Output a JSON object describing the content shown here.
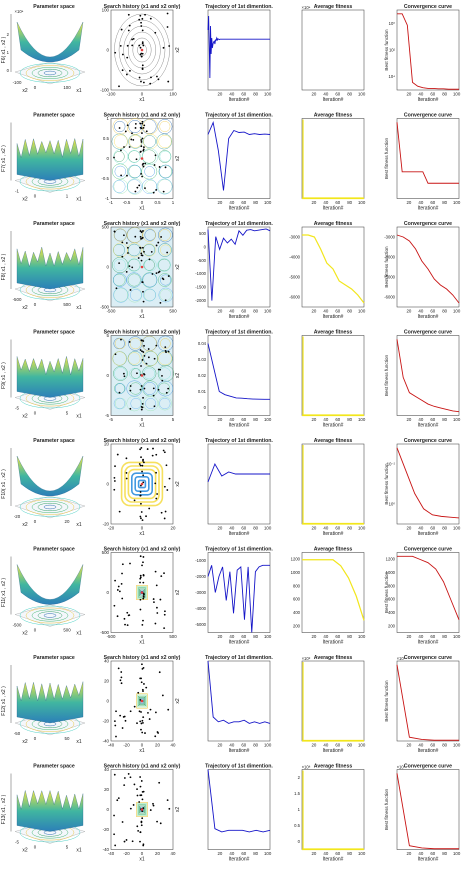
{
  "figure": {
    "col_titles": [
      "Parameter space",
      "Search history (x1 and x2 only)",
      "Trajectory of 1st dimention.",
      "Average fitness",
      "Convergence curve"
    ],
    "x1_label": "x1",
    "x2_label": "x2",
    "iter_label": "Iteration#",
    "bff_label": "Best fitness function"
  },
  "chart_data": [
    {
      "type": "line",
      "name": "F6",
      "surface_label": "F6( x1 , x2 )",
      "surface_x1": "x1",
      "surface_x2": "x2",
      "surface_ticks": [
        "-100",
        "0",
        "100"
      ],
      "surface_z": [
        "×10⁴",
        "0",
        "1",
        "2"
      ],
      "search_range": [
        -100,
        100
      ],
      "search_ticks": [
        "-100",
        "0",
        "100"
      ],
      "search_yticks": [
        "-100",
        "0",
        "100"
      ],
      "traj": {
        "ylim": [
          -100,
          100
        ],
        "yticks": [],
        "values": [
          50,
          85,
          10,
          -70,
          60,
          -10,
          30,
          5,
          15,
          20,
          22,
          15,
          25,
          24,
          30,
          25,
          28,
          27,
          26,
          27,
          27,
          27,
          27,
          27,
          27,
          27,
          27,
          27,
          27,
          27,
          27,
          27,
          27,
          27,
          27,
          27,
          27,
          27,
          27,
          27,
          27,
          27,
          27,
          27,
          27,
          27,
          27,
          27,
          27,
          27,
          27,
          27,
          27,
          27,
          27,
          27,
          27,
          27,
          27,
          27,
          27,
          27,
          27,
          27,
          27,
          27,
          27,
          27,
          27,
          27,
          27,
          27,
          27,
          27,
          27,
          27,
          27,
          27,
          27,
          27,
          27,
          27,
          27,
          27,
          27,
          27,
          27,
          27,
          27,
          27,
          27,
          27,
          27,
          27,
          27,
          27,
          27,
          27,
          27,
          27
        ]
      },
      "avg": {
        "scale": "×10⁴",
        "yticks": [],
        "values": [
          0,
          0,
          0,
          0,
          0
        ]
      },
      "conv": {
        "scale": "log",
        "yticks": [
          "10⁴",
          "10²",
          "10⁰"
        ],
        "values": [
          1,
          1,
          0.85,
          0.1,
          0.05,
          0.03,
          0.02,
          0.02,
          0.015,
          0.015,
          0.01,
          0.01,
          0.01
        ]
      }
    },
    {
      "type": "line",
      "name": "F7",
      "surface_label": "F7( x1 , x2 )",
      "surface_x1": "x1",
      "surface_x2": "x2",
      "surface_ticks": [
        "-1",
        "0",
        "1"
      ],
      "surface_z": [],
      "search_range": [
        -1,
        1
      ],
      "search_ticks": [
        "-1",
        "-0.5",
        "0",
        "0.5",
        "1"
      ],
      "search_yticks": [
        "-1",
        "-0.5",
        "0",
        "0.5",
        "1"
      ],
      "traj": {
        "ylim": [
          -1,
          1
        ],
        "yticks": [],
        "values": [
          0.6,
          0.9,
          0.2,
          -0.8,
          0.5,
          0.7,
          0.65,
          0.66,
          0.6,
          0.62,
          0.6,
          0.61,
          0.6
        ]
      },
      "avg": {
        "scale": "",
        "yticks": [],
        "values": [
          0,
          0,
          0
        ]
      },
      "conv": {
        "scale": "",
        "yticks": [],
        "values": [
          1,
          0.35,
          0.35,
          0.35,
          0.35,
          0.35,
          0.2,
          0.2,
          0.2,
          0.2,
          0.2,
          0.2,
          0.2
        ]
      }
    },
    {
      "type": "line",
      "name": "F8",
      "surface_label": "F8( x1 , x2 )",
      "surface_x1": "x1",
      "surface_x2": "x2",
      "surface_ticks": [
        "-500",
        "0",
        "500"
      ],
      "surface_z": [],
      "search_range": [
        -500,
        500
      ],
      "search_ticks": [
        "-500",
        "0",
        "500"
      ],
      "search_yticks": [
        "-500",
        "0",
        "500"
      ],
      "traj": {
        "ylim": [
          -2000,
          500
        ],
        "yticks": [
          "-2000",
          "-1500",
          "-1000",
          "-500",
          "0",
          "500"
        ],
        "values": [
          420,
          -1800,
          200,
          -200,
          150,
          0,
          120,
          -40,
          380,
          240,
          400,
          420,
          380,
          400,
          420,
          440,
          380
        ]
      },
      "avg": {
        "scale": "",
        "yticks": [
          "-6000",
          "-5000",
          "-4000",
          "-3000"
        ],
        "values": [
          -2600,
          -2600,
          -2700,
          -3300,
          -4000,
          -4300,
          -4900,
          -5100,
          -5300,
          -5600,
          -6000
        ]
      },
      "conv": {
        "scale": "",
        "yticks": [
          "-6000",
          "-5000",
          "-4000",
          "-3000"
        ],
        "values": [
          -2500,
          -2600,
          -2800,
          -3200,
          -3800,
          -4200,
          -4700,
          -5000,
          -5200,
          -5500,
          -5900
        ]
      }
    },
    {
      "type": "line",
      "name": "F9",
      "surface_label": "F9( x1 , x2 )",
      "surface_x1": "x1",
      "surface_x2": "x2",
      "surface_ticks": [
        "-5",
        "0",
        "5"
      ],
      "surface_z": [],
      "search_range": [
        -5,
        5
      ],
      "search_ticks": [
        "-5",
        "0",
        "5"
      ],
      "search_yticks": [
        "-5",
        "0",
        "5"
      ],
      "traj": {
        "ylim": [
          -0.01,
          0.04
        ],
        "yticks": [
          "0",
          "0.01",
          "0.02",
          "0.03",
          "0.04"
        ],
        "values": [
          0.035,
          0.02,
          0.005,
          0.003,
          0.002,
          0.001,
          0.0008,
          0.0005,
          0.0003,
          0.0002,
          0.0001,
          0.0001
        ]
      },
      "avg": {
        "scale": "",
        "yticks": [],
        "values": [
          0,
          0,
          0
        ]
      },
      "conv": {
        "scale": "",
        "yticks": [],
        "values": [
          1,
          0.5,
          0.3,
          0.25,
          0.2,
          0.15,
          0.12,
          0.1,
          0.08,
          0.06,
          0.05
        ]
      }
    },
    {
      "type": "line",
      "name": "F10",
      "surface_label": "F10( x1 , x2 )",
      "surface_x1": "x1",
      "surface_x2": "x2",
      "surface_ticks": [
        "-20",
        "0",
        "20"
      ],
      "surface_z": [],
      "search_range": [
        -20,
        20
      ],
      "search_ticks": [
        "-20",
        "0",
        "20"
      ],
      "search_yticks": [
        "-20",
        "0",
        "20"
      ],
      "traj": {
        "ylim": [
          -20,
          20
        ],
        "yticks": [],
        "values": [
          1,
          10,
          4,
          6,
          5,
          5,
          5,
          5,
          5,
          5
        ]
      },
      "avg": {
        "scale": "",
        "yticks": [],
        "values": [
          0,
          0,
          0
        ]
      },
      "conv": {
        "scale": "log",
        "yticks": [
          "10⁰",
          "10⁻²"
        ],
        "values": [
          1,
          0.7,
          0.4,
          0.2,
          0.12,
          0.1,
          0.09,
          0.08
        ]
      }
    },
    {
      "type": "line",
      "name": "F11",
      "surface_label": "F11( x1 , x2 )",
      "surface_x1": "x1",
      "surface_x2": "x2",
      "surface_ticks": [
        "-500",
        "0",
        "500"
      ],
      "surface_z": [],
      "search_range": [
        -500,
        500
      ],
      "search_ticks": [
        "-500",
        "0",
        "500"
      ],
      "search_yticks": [
        "-500",
        "0",
        "500"
      ],
      "traj": {
        "ylim": [
          -5000,
          0
        ],
        "yticks": [
          "-5000",
          "-4000",
          "-3000",
          "-2000",
          "-1000"
        ],
        "values": [
          -1500,
          -800,
          -2500,
          -1500,
          -900,
          -3000,
          -1200,
          -3800,
          -1100,
          -900,
          -4200,
          -900,
          -5200,
          -1200,
          -900,
          -800,
          -800,
          -800
        ]
      },
      "avg": {
        "scale": "",
        "yticks": [
          "200",
          "400",
          "600",
          "800",
          "1000",
          "1200"
        ],
        "values": [
          1200,
          1200,
          1200,
          1200,
          1200,
          1100,
          900,
          600,
          200
        ]
      },
      "conv": {
        "scale": "",
        "yticks": [
          "200",
          "400",
          "600",
          "800",
          "1000",
          "1200"
        ],
        "values": [
          1200,
          1200,
          1200,
          1150,
          1100,
          1000,
          800,
          500,
          200
        ]
      }
    },
    {
      "type": "line",
      "name": "F12",
      "surface_label": "F12( x1 , x2 )",
      "surface_x1": "x1",
      "surface_x2": "x2",
      "surface_ticks": [
        "-50",
        "0",
        "50"
      ],
      "surface_z": [],
      "search_range": [
        -50,
        50
      ],
      "search_ticks": [
        "-40",
        "-20",
        "0",
        "20",
        "40"
      ],
      "search_yticks": [
        "-40",
        "-20",
        "0",
        "20",
        "40"
      ],
      "traj": {
        "ylim": [
          -10,
          40
        ],
        "yticks": [],
        "values": [
          40,
          5,
          2,
          3,
          1,
          2,
          2,
          3,
          1,
          2,
          1,
          2,
          1
        ]
      },
      "avg": {
        "scale": "×10⁸",
        "yticks": [],
        "values": [
          0,
          0,
          0
        ]
      },
      "conv": {
        "scale": "×10⁸",
        "yticks": [],
        "values": [
          1,
          0.05,
          0.02,
          0.01,
          0.01,
          0.01
        ]
      }
    },
    {
      "type": "line",
      "name": "F13",
      "surface_label": "F13( x1 , x2 )",
      "surface_x1": "x1",
      "surface_x2": "x2",
      "surface_ticks": [
        "-5",
        "0",
        "5"
      ],
      "surface_z": [],
      "search_range": [
        -50,
        50
      ],
      "search_ticks": [
        "-40",
        "-20",
        "0",
        "20",
        "40"
      ],
      "search_yticks": [
        "-40",
        "-20",
        "0",
        "20",
        "40"
      ],
      "traj": {
        "ylim": [
          -10,
          40
        ],
        "yticks": [],
        "values": [
          40,
          3,
          1,
          2,
          2,
          2,
          1,
          2,
          1,
          2
        ]
      },
      "avg": {
        "scale": "×10⁸",
        "yticks": [
          "0",
          "0.5",
          "1",
          "1.5",
          "2"
        ],
        "values": [
          0,
          0,
          0
        ]
      },
      "conv": {
        "scale": "×10⁸",
        "yticks": [],
        "values": [
          1,
          0.05,
          0.02,
          0.01,
          0.01,
          0.01
        ]
      }
    }
  ]
}
